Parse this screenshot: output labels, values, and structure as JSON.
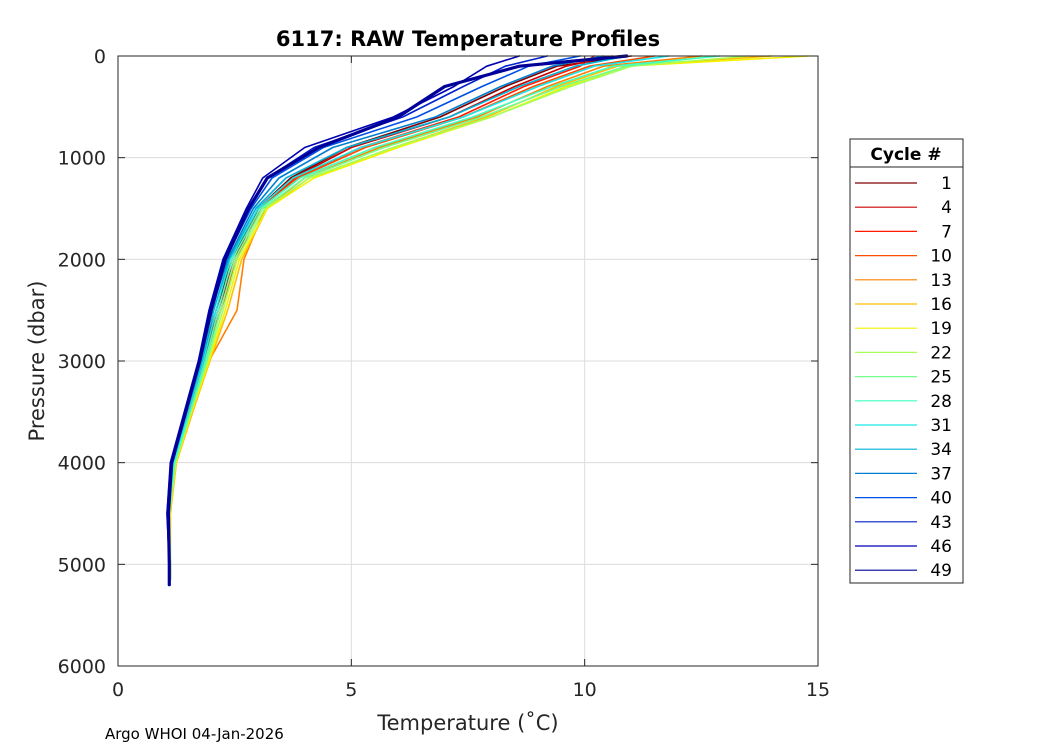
{
  "footer": "Argo WHOI 04-Jan-2026",
  "chart_data": {
    "type": "line",
    "title": "6117: RAW Temperature Profiles",
    "xlabel": "Temperature (˚C)",
    "ylabel": "Pressure (dbar)",
    "xlim": [
      0,
      15
    ],
    "ylim": [
      0,
      6000
    ],
    "y_reversed": true,
    "grid": true,
    "xticks": [
      0,
      5,
      10,
      15
    ],
    "yticks": [
      0,
      1000,
      2000,
      3000,
      4000,
      5000,
      6000
    ],
    "legend": {
      "title": "Cycle #",
      "placement": "outside-right",
      "entries": [
        {
          "label": "1",
          "color": "#800000"
        },
        {
          "label": "4",
          "color": "#cc0000"
        },
        {
          "label": "7",
          "color": "#ff1a00"
        },
        {
          "label": "10",
          "color": "#ff4d00"
        },
        {
          "label": "13",
          "color": "#ff8000"
        },
        {
          "label": "16",
          "color": "#ffbf00"
        },
        {
          "label": "19",
          "color": "#f2f200"
        },
        {
          "label": "22",
          "color": "#a6ff59"
        },
        {
          "label": "25",
          "color": "#73ff8c"
        },
        {
          "label": "28",
          "color": "#40ffbf"
        },
        {
          "label": "31",
          "color": "#1ae6e6"
        },
        {
          "label": "34",
          "color": "#00b3d9"
        },
        {
          "label": "37",
          "color": "#0080d0"
        },
        {
          "label": "40",
          "color": "#0050e6"
        },
        {
          "label": "43",
          "color": "#0020cc"
        },
        {
          "label": "46",
          "color": "#0000b3"
        },
        {
          "label": "49",
          "color": "#000099"
        }
      ]
    },
    "series": [
      {
        "name": "1",
        "color": "#800000",
        "pressure": [
          0,
          100,
          300,
          600,
          900,
          1200,
          1500,
          2000,
          2500,
          3000,
          3500,
          4000,
          4500,
          5000,
          5150
        ],
        "temperature": [
          11.0,
          9.4,
          8.3,
          6.9,
          4.9,
          3.7,
          3.0,
          2.45,
          2.1,
          1.8,
          1.5,
          1.2,
          1.1,
          1.12,
          1.12
        ]
      },
      {
        "name": "4",
        "color": "#cc0000",
        "pressure": [
          0,
          100,
          300,
          600,
          900,
          1200,
          1500,
          2000,
          2500,
          3000,
          3500,
          4000,
          4500,
          5000,
          5150
        ],
        "temperature": [
          10.6,
          9.6,
          8.5,
          7.1,
          5.0,
          3.75,
          3.0,
          2.5,
          2.15,
          1.83,
          1.5,
          1.2,
          1.1,
          1.12,
          1.12
        ]
      },
      {
        "name": "7",
        "color": "#ff1a00",
        "pressure": [
          0,
          100,
          300,
          600,
          900,
          1200,
          1500,
          2000,
          2500,
          3000,
          3500,
          4000,
          4500,
          5000,
          5150
        ],
        "temperature": [
          10.2,
          9.9,
          8.7,
          7.3,
          5.2,
          3.8,
          3.05,
          2.55,
          2.2,
          1.85,
          1.52,
          1.22,
          1.1,
          1.12,
          1.12
        ]
      },
      {
        "name": "10",
        "color": "#ff4d00",
        "pressure": [
          0,
          100,
          300,
          600,
          900,
          1200,
          1500,
          2000,
          2500,
          3000,
          3500,
          4000,
          4500,
          5000,
          5150
        ],
        "temperature": [
          11.5,
          10.1,
          8.9,
          7.4,
          5.3,
          3.85,
          3.05,
          2.55,
          2.2,
          1.86,
          1.53,
          1.22,
          1.1,
          1.12,
          1.12
        ]
      },
      {
        "name": "13",
        "color": "#ff8000",
        "pressure": [
          0,
          100,
          300,
          600,
          900,
          1200,
          1500,
          2000,
          2500,
          3000,
          3500,
          4000,
          4500,
          5000,
          5150
        ],
        "temperature": [
          12.5,
          10.4,
          9.2,
          7.7,
          5.6,
          4.0,
          3.15,
          2.7,
          2.55,
          1.95,
          1.6,
          1.25,
          1.12,
          1.12,
          1.12
        ]
      },
      {
        "name": "16",
        "color": "#ffbf00",
        "pressure": [
          0,
          100,
          300,
          600,
          900,
          1200,
          1500,
          2000,
          2500,
          3000,
          3500,
          4000,
          4500,
          5000,
          5150
        ],
        "temperature": [
          14.0,
          10.7,
          9.4,
          7.9,
          5.9,
          4.1,
          3.2,
          2.65,
          2.35,
          1.97,
          1.6,
          1.25,
          1.12,
          1.12,
          1.12
        ]
      },
      {
        "name": "19",
        "color": "#f2f200",
        "pressure": [
          0,
          100,
          300,
          600,
          900,
          1200,
          1500,
          2000,
          2500,
          3000,
          3500,
          4000,
          4500,
          5000,
          5150
        ],
        "temperature": [
          14.8,
          10.9,
          9.6,
          8.0,
          6.0,
          4.2,
          3.2,
          2.6,
          2.3,
          1.95,
          1.58,
          1.24,
          1.11,
          1.12,
          1.12
        ]
      },
      {
        "name": "22",
        "color": "#a6ff59",
        "pressure": [
          0,
          100,
          300,
          600,
          900,
          1200,
          1500,
          2000,
          2500,
          3000,
          3500,
          4000,
          4500,
          5000,
          5150
        ],
        "temperature": [
          13.5,
          11.0,
          9.7,
          8.0,
          5.9,
          4.1,
          3.15,
          2.55,
          2.25,
          1.92,
          1.56,
          1.23,
          1.1,
          1.12,
          1.12
        ]
      },
      {
        "name": "25",
        "color": "#73ff8c",
        "pressure": [
          0,
          100,
          300,
          600,
          900,
          1200,
          1500,
          2000,
          2500,
          3000,
          3500,
          4000,
          4500,
          5000,
          5150
        ],
        "temperature": [
          12.8,
          10.9,
          9.5,
          7.8,
          5.7,
          4.0,
          3.1,
          2.5,
          2.2,
          1.9,
          1.55,
          1.22,
          1.1,
          1.12,
          1.12
        ]
      },
      {
        "name": "28",
        "color": "#40ffbf",
        "pressure": [
          0,
          100,
          300,
          600,
          900,
          1200,
          1500,
          2000,
          2500,
          3000,
          3500,
          4000,
          4500,
          5000,
          5150
        ],
        "temperature": [
          12.9,
          10.6,
          9.3,
          7.6,
          5.5,
          3.9,
          3.05,
          2.45,
          2.15,
          1.87,
          1.54,
          1.2,
          1.08,
          1.1,
          1.1
        ]
      },
      {
        "name": "31",
        "color": "#1ae6e6",
        "pressure": [
          0,
          100,
          300,
          600,
          900,
          1200,
          1500,
          2000,
          2500,
          3000,
          3500,
          4000,
          4500,
          5000,
          5150
        ],
        "temperature": [
          11.8,
          10.2,
          9.0,
          7.4,
          5.2,
          3.75,
          3.0,
          2.4,
          2.1,
          1.83,
          1.5,
          1.18,
          1.07,
          1.1,
          1.1
        ]
      },
      {
        "name": "34",
        "color": "#00b3d9",
        "pressure": [
          0,
          100,
          300,
          600,
          900,
          1200,
          1500,
          2000,
          2500,
          3000,
          3500,
          4000,
          4500,
          5000,
          5150
        ],
        "temperature": [
          10.9,
          9.8,
          8.6,
          7.1,
          4.9,
          3.6,
          2.95,
          2.38,
          2.05,
          1.8,
          1.48,
          1.17,
          1.07,
          1.1,
          1.1
        ]
      },
      {
        "name": "37",
        "color": "#0080d0",
        "pressure": [
          0,
          100,
          300,
          600,
          900,
          1200,
          1500,
          2000,
          2500,
          3000,
          3500,
          4000,
          4500,
          5000,
          5150
        ],
        "temperature": [
          10.4,
          9.3,
          8.2,
          6.8,
          4.6,
          3.45,
          2.9,
          2.35,
          2.0,
          1.77,
          1.46,
          1.15,
          1.06,
          1.1,
          1.1
        ]
      },
      {
        "name": "40",
        "color": "#0050e6",
        "pressure": [
          0,
          100,
          300,
          600,
          900,
          1200,
          1500,
          2000,
          2500,
          3000,
          3500,
          4000,
          4500,
          5000,
          5150
        ],
        "temperature": [
          9.9,
          8.8,
          7.8,
          6.4,
          4.4,
          3.3,
          2.85,
          2.3,
          1.98,
          1.75,
          1.45,
          1.14,
          1.06,
          1.1,
          1.1
        ]
      },
      {
        "name": "43",
        "color": "#0020cc",
        "pressure": [
          0,
          100,
          300,
          600,
          900,
          1200,
          1500,
          2000,
          2500,
          3000,
          3500,
          4000,
          4500,
          5000,
          5150
        ],
        "temperature": [
          9.2,
          8.3,
          7.4,
          6.1,
          4.2,
          3.2,
          2.8,
          2.28,
          1.96,
          1.74,
          1.44,
          1.13,
          1.05,
          1.1,
          1.1
        ]
      },
      {
        "name": "46",
        "color": "#0000b3",
        "pressure": [
          0,
          100,
          300,
          600,
          900,
          1200,
          1500,
          2000,
          2500,
          3000,
          3500,
          4000,
          4500,
          5000,
          5150
        ],
        "temperature": [
          8.6,
          7.9,
          7.2,
          5.9,
          4.0,
          3.1,
          2.75,
          2.25,
          1.95,
          1.72,
          1.42,
          1.12,
          1.05,
          1.1,
          1.1
        ]
      },
      {
        "name": "49",
        "color": "#000099",
        "pressure": [
          0,
          100,
          300,
          600,
          900,
          1200,
          1500,
          2000,
          2500,
          3000,
          3500,
          4000,
          4500,
          5000,
          5200
        ],
        "temperature": [
          10.9,
          8.6,
          7.0,
          6.0,
          4.3,
          3.2,
          2.8,
          2.3,
          2.0,
          1.75,
          1.45,
          1.15,
          1.08,
          1.1,
          1.1
        ]
      }
    ]
  }
}
